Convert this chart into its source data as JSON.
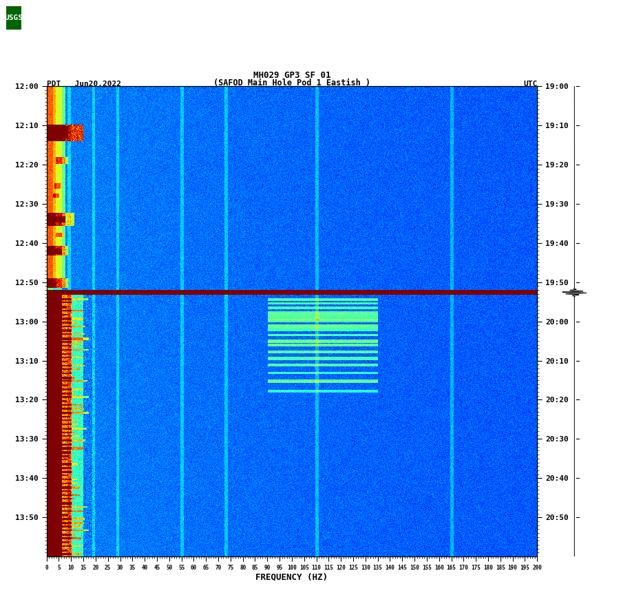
{
  "title_line1": "MH029 GP3 SF 01",
  "title_line2": "(SAFOD Main Hole Pod 1 Eastish )",
  "left_label": "PDT   Jun20,2022",
  "right_label": "UTC",
  "xlabel": "FREQUENCY (HZ)",
  "freq_min": 0,
  "freq_max": 200,
  "freq_ticks": [
    0,
    5,
    10,
    15,
    20,
    25,
    30,
    35,
    40,
    45,
    50,
    55,
    60,
    65,
    70,
    75,
    80,
    85,
    90,
    95,
    100,
    105,
    110,
    115,
    120,
    125,
    130,
    135,
    140,
    145,
    150,
    155,
    160,
    165,
    170,
    175,
    180,
    185,
    190,
    195,
    200
  ],
  "left_time_labels": [
    "12:00",
    "12:10",
    "12:20",
    "12:30",
    "12:40",
    "12:50",
    "13:00",
    "13:10",
    "13:20",
    "13:30",
    "13:40",
    "13:50"
  ],
  "right_time_labels": [
    "19:00",
    "19:10",
    "19:20",
    "19:30",
    "19:40",
    "19:50",
    "20:00",
    "20:10",
    "20:20",
    "20:30",
    "20:40",
    "20:50"
  ],
  "n_time_rows": 720,
  "n_freq_cols": 800,
  "background_color": "#ffffff",
  "usgs_logo_color": "#006400",
  "base_noise_level": 1.8,
  "base_noise_std": 0.25
}
